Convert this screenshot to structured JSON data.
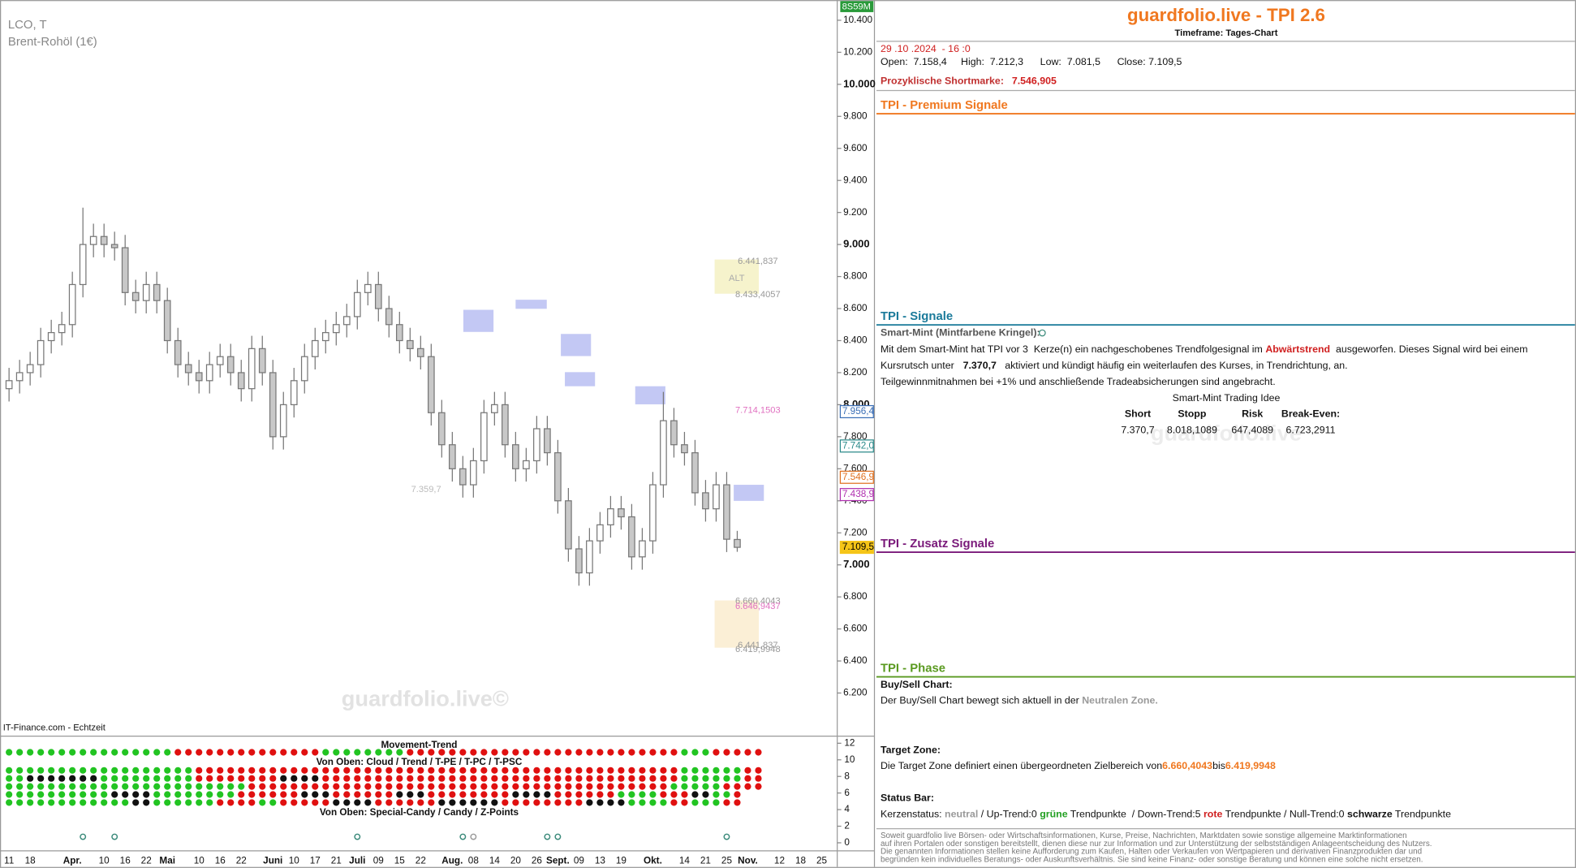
{
  "chart_data": {
    "type": "candlestick",
    "title": "LCO, T",
    "subtitle": "Brent-Rohöl (1€)",
    "source": "IT-Finance.com - Echtzeit",
    "watermark": "guardfolio.live©",
    "timer": "8S59M",
    "categories": [
      "11",
      null,
      "18",
      null,
      null,
      null,
      "Apr.",
      null,
      null,
      "10",
      null,
      "16",
      null,
      "22",
      null,
      "Mai",
      null,
      null,
      "10",
      null,
      "16",
      null,
      "22",
      null,
      null,
      "Juni",
      null,
      "10",
      null,
      "17",
      null,
      "21",
      null,
      "Juli",
      null,
      "09",
      null,
      "15",
      null,
      "22",
      null,
      null,
      "Aug.",
      null,
      "08",
      null,
      "14",
      null,
      "20",
      null,
      "26",
      null,
      "Sept.",
      null,
      "09",
      null,
      "13",
      null,
      "19",
      null,
      null,
      "Okt.",
      null,
      null,
      "14",
      null,
      "21",
      null,
      "25",
      null,
      "Nov.",
      null,
      null,
      "12",
      null,
      "18",
      null,
      "25",
      null
    ],
    "open": [
      8100,
      8150,
      8200,
      8250,
      8400,
      8450,
      8500,
      8750,
      9000,
      9050,
      9000,
      8980,
      8700,
      8650,
      8750,
      8650,
      8400,
      8250,
      8200,
      8150,
      8250,
      8300,
      8200,
      8100,
      8350,
      8200,
      7800,
      8000,
      8150,
      8300,
      8400,
      8450,
      8500,
      8550,
      8700,
      8750,
      8600,
      8500,
      8400,
      8350,
      8300,
      7950,
      7750,
      7600,
      7500,
      7650,
      7950,
      8000,
      7750,
      7600,
      7650,
      7850,
      7700,
      7400,
      7100,
      6950,
      7150,
      7250,
      7350,
      7300,
      7050,
      7150,
      7500,
      7900,
      7750,
      7700,
      7450,
      7350,
      7500,
      7158.4,
      null,
      null,
      null,
      null,
      null,
      null,
      null,
      null,
      null
    ],
    "high": [
      8230,
      8280,
      8330,
      8480,
      8530,
      8580,
      8830,
      9230,
      9130,
      9130,
      9080,
      9060,
      8780,
      8830,
      8830,
      8730,
      8480,
      8330,
      8280,
      8330,
      8380,
      8380,
      8280,
      8430,
      8430,
      8280,
      8080,
      8230,
      8380,
      8480,
      8530,
      8580,
      8630,
      8780,
      8830,
      8830,
      8680,
      8580,
      8480,
      8430,
      8380,
      8030,
      7830,
      7680,
      7730,
      8030,
      8080,
      8080,
      7830,
      7730,
      7930,
      7930,
      7780,
      7480,
      7180,
      7230,
      7330,
      7430,
      7430,
      7380,
      7230,
      7580,
      8080,
      7980,
      7830,
      7780,
      7530,
      7580,
      7580,
      7212.3,
      null,
      null,
      null,
      null,
      null,
      null,
      null,
      null,
      null
    ],
    "low": [
      8020,
      8070,
      8120,
      8170,
      8320,
      8370,
      8420,
      8670,
      8920,
      8920,
      8900,
      8620,
      8570,
      8570,
      8570,
      8320,
      8170,
      8120,
      8070,
      8070,
      8170,
      8120,
      8020,
      8020,
      8120,
      7720,
      7720,
      7920,
      8070,
      8220,
      8320,
      8370,
      8420,
      8470,
      8620,
      8520,
      8420,
      8320,
      8270,
      8220,
      7870,
      7670,
      7520,
      7420,
      7420,
      7570,
      7870,
      7670,
      7520,
      7520,
      7570,
      7620,
      7320,
      7020,
      6870,
      6870,
      7070,
      7170,
      7220,
      6970,
      6970,
      7070,
      7420,
      7670,
      7620,
      7370,
      7270,
      7270,
      7080,
      7081.5,
      null,
      null,
      null,
      null,
      null,
      null,
      null,
      null,
      null
    ],
    "close": [
      8150,
      8200,
      8250,
      8400,
      8450,
      8500,
      8750,
      9000,
      9050,
      9000,
      8980,
      8700,
      8650,
      8750,
      8650,
      8400,
      8250,
      8200,
      8150,
      8250,
      8300,
      8200,
      8100,
      8350,
      8200,
      7800,
      8000,
      8150,
      8300,
      8400,
      8450,
      8500,
      8550,
      8700,
      8750,
      8600,
      8500,
      8400,
      8350,
      8300,
      7950,
      7750,
      7600,
      7500,
      7650,
      7950,
      8000,
      7750,
      7600,
      7650,
      7850,
      7700,
      7400,
      7100,
      6950,
      7150,
      7250,
      7350,
      7300,
      7050,
      7150,
      7500,
      7900,
      7750,
      7700,
      7450,
      7350,
      7500,
      7160,
      7109.5,
      null,
      null,
      null,
      null,
      null,
      null,
      null,
      null,
      null
    ],
    "up_color": "#ffffff",
    "down_color": "#c8c8c8",
    "wick_color": "#777777",
    "ylim": [
      5943,
      10526
    ],
    "yticks": [
      {
        "value": 10400,
        "label": "10.400"
      },
      {
        "value": 10200,
        "label": "10.200"
      },
      {
        "value": 10000,
        "label": "10.000"
      },
      {
        "value": 9800,
        "label": "9.800"
      },
      {
        "value": 9600,
        "label": "9.600"
      },
      {
        "value": 9400,
        "label": "9.400"
      },
      {
        "value": 9200,
        "label": "9.200"
      },
      {
        "value": 9000,
        "label": "9.000"
      },
      {
        "value": 8800,
        "label": "8.800"
      },
      {
        "value": 8600,
        "label": "8.600"
      },
      {
        "value": 8400,
        "label": "8.400"
      },
      {
        "value": 8200,
        "label": "8.200"
      },
      {
        "value": 8000,
        "label": "8.000"
      },
      {
        "value": 7800,
        "label": "7.800"
      },
      {
        "value": 7600,
        "label": "7.600"
      },
      {
        "value": 7400,
        "label": "7.400"
      },
      {
        "value": 7200,
        "label": "7.200"
      },
      {
        "value": 7000,
        "label": "7.000"
      },
      {
        "value": 6800,
        "label": "6.800"
      },
      {
        "value": 6600,
        "label": "6.600"
      },
      {
        "value": 6400,
        "label": "6.400"
      },
      {
        "value": 6200,
        "label": "6.200"
      }
    ],
    "price_markers": [
      {
        "value": 7956.4,
        "label": "7.956,4",
        "color": "#3b6fb6"
      },
      {
        "value": 7742,
        "label": "7.742,0",
        "color": "#2a8a8a"
      },
      {
        "value": 7546.9,
        "label": "7.546,9",
        "color": "#e07020"
      },
      {
        "value": 7438.9,
        "label": "7.438,9",
        "color": "#b030b0"
      },
      {
        "value": 7109.5,
        "label": "7.109,5",
        "color": "#f5c518"
      }
    ],
    "annotations": [
      "ALT",
      "6.441,837",
      "8.433,4057",
      "7.714,1503",
      "7.359,7",
      "6.660,4043",
      "6.646,9437",
      "6.441,837",
      "6.419,9948"
    ],
    "indicator_ylim": [
      0,
      12
    ],
    "indicator_ticks": [
      12,
      10,
      8,
      6,
      4,
      2,
      0
    ],
    "state_colors": {
      "G": "#22c422",
      "R": "#e01010",
      "K": "#111111",
      "o": "#3a8a7a",
      "g": "#9a9a9a"
    },
    "indicator_panels": [
      {
        "title": "Movement-Trend",
        "rows": [
          "GGGGGGGGGGGGGGGGRRRRRRRRRRRRRRGGGGGGGGRRRRRRRRRRRRRRRRRRRRRRRRRRGGGRRRRR"
        ]
      },
      {
        "title": "Von Oben: Cloud / Trend / T-PE / T-PC / T-PSC",
        "rows": [
          "GGGGGGGGGGGGGGGGGGRRRRRRRRRRRRRRRRRRRRRRRRRRRRRRRRRRRRRRRRRRRRRRGGGGGGRR",
          "GGKKKKKKKGGGGGGGGGRRRRRRRRKKKKRRRRRRRRRRRRRRRRRRRRRRRRRRRRRRRRRRGGGGGGRR",
          "GGGGGGGGGGGGGGGGGGGGGGGRRRRRRRRRRRRRRRRRRRRRRRRRRRRRRRRRRRRRRRRGGGGGRRRR",
          "GGGGGGGGGGKKKKGGGGGGGGRRRRRRKKKRRRRRRKKKRRRRRRRRKKKKRRRRRRGGGGRRRKKGGR",
          "GGGGGGGGGGGGKKGGGGGGRRRRGGRRRRRKKKKRRRRRRKKKKKKRRRRRRRRKKKKGGGGRRGGGRR"
        ]
      },
      {
        "title": "Von Oben: Special-Candy / Candy / Z-Points",
        "rows": [
          ".......o..o......................o.........og......oo...............o."
        ]
      }
    ]
  },
  "panel": {
    "title": "guardfolio.live - TPI 2.6",
    "timeframe": "Timeframe: Tages-Chart",
    "datetime": "29 .10 .2024  - 16 :0",
    "ohlc": "Open:  7.158,4     High:  7.212,3      Low:  7.081,5      Close: 7.109,5",
    "shortmark_label": "Prozyklische Shortmarke:",
    "shortmark_value": "7.546,905",
    "premium": "TPI - Premium Signale",
    "signals": "TPI - Signale",
    "smart_mint_heading": "Smart-Mint (Mintfarbene Kringel):",
    "line1": [
      "Mit dem Smart-Mint hat TPI vor 3  Kerze(n) ein nachgeschobenes Trendfolgesignal im ",
      "Abwärtstrend",
      "  ausgeworfen. Dieses Signal wird bei einem"
    ],
    "line2": [
      "Kursrutsch unter ",
      "7.370,7",
      "   aktiviert und kündigt häufig ein weiterlaufen des Kurses, in Trendrichtung, an."
    ],
    "line3": "Teilgewinnmitnahmen bei +1% und anschließende Tradeabsicherungen sind angebracht.",
    "idea_title": "Smart-Mint Trading Idee",
    "idea_headers": [
      "Short",
      "Stopp",
      "Risk",
      "Break-Even:"
    ],
    "idea_values": [
      "7.370,7",
      "8.018,1089",
      "647,4089",
      "6.723,2911"
    ],
    "watermark": "guardfolio.live",
    "extra": "TPI - Zusatz Signale",
    "phase": "TPI - Phase",
    "buysell_heading": "Buy/Sell Chart:",
    "buysell_text": [
      "Der Buy/Sell Chart bewegt sich aktuell in der ",
      "Neutralen Zone."
    ],
    "target_heading": "Target Zone:",
    "target_text": [
      "Die Target Zone definiert einen übergeordneten Zielbereich von",
      "6.660,4043",
      "bis",
      "6.419,9948"
    ],
    "status_heading": "Status Bar:",
    "status_text": [
      "Kerzenstatus: ",
      "neutral",
      " / Up-Trend:0 ",
      "grüne",
      " Trendpunkte  / Down-Trend:5 ",
      "rote",
      " Trendpunkte / Null-Trend:0 ",
      "schwarze",
      " Trendpunkte"
    ],
    "disclaimer": [
      "Soweit guardfolio live Börsen- oder Wirtschaftsinformationen, Kurse, Preise, Nachrichten, Marktdaten sowie sonstige allgemeine Marktinformationen",
      "auf ihren Portalen oder sonstigen bereitstellt, dienen diese nur zur Information und zur Unterstützung der selbstständigen Anlageentscheidung des Nutzers.",
      "Die genannten Informationen stellen keine Aufforderung zum Kaufen, Halten oder Verkaufen von Wertpapieren und derivativen Finanzprodukten dar und",
      "begründen kein individuelles Beratungs- oder Auskunftsverhältnis. Sie sind keine Finanz- oder sonstige Beratung und können eine solche nicht ersetzen."
    ]
  }
}
